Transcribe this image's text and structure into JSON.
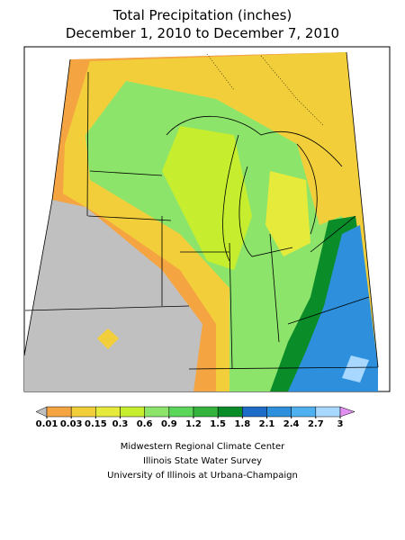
{
  "header": {
    "title": "Total Precipitation (inches)",
    "subtitle": "December 1, 2010 to December 7, 2010"
  },
  "legend": {
    "ticks": [
      0.01,
      0.03,
      0.15,
      0.3,
      0.6,
      0.9,
      1.2,
      1.5,
      1.8,
      2.1,
      2.4,
      2.7,
      3
    ],
    "colors": [
      "#c0c0c0",
      "#f5a442",
      "#f2cf3a",
      "#e6ea3a",
      "#c6ee2e",
      "#8ce46a",
      "#5cd65a",
      "#34b43c",
      "#0a8c28",
      "#1e6cc8",
      "#2e90dc",
      "#4fb0f0",
      "#a8d8ff",
      "#e08ff0"
    ]
  },
  "credits": [
    "Midwestern Regional Climate Center",
    "Illinois State Water Survey",
    "University of Illinois at Urbana-Champaign"
  ]
}
